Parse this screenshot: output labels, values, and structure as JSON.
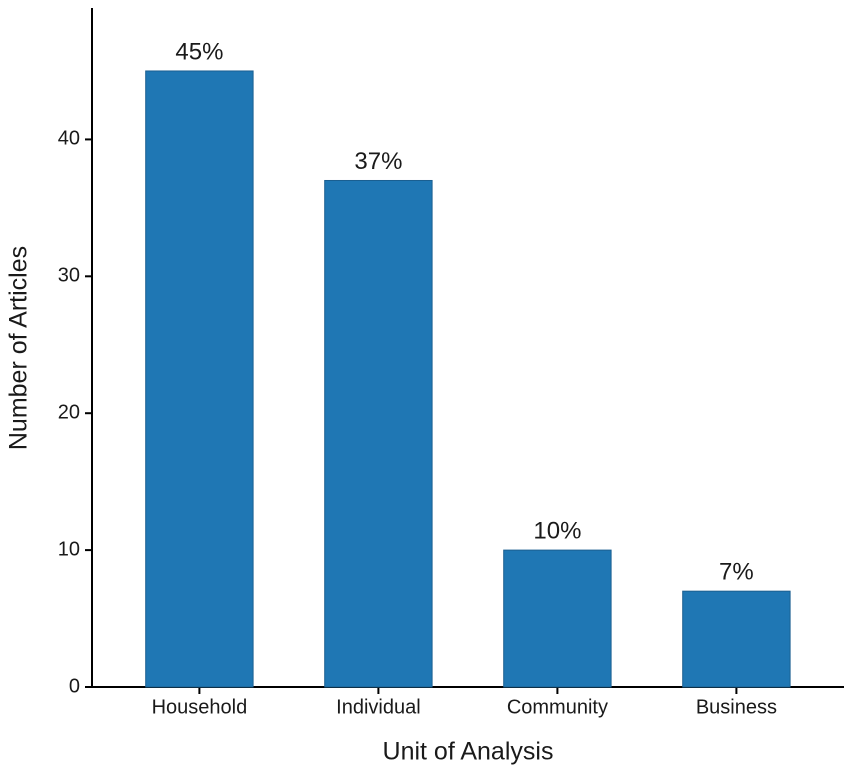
{
  "chart_data": {
    "type": "bar",
    "categories": [
      "Household",
      "Individual",
      "Community",
      "Business"
    ],
    "values": [
      45,
      37,
      10,
      7
    ],
    "value_labels": [
      "45%",
      "37%",
      "10%",
      "7%"
    ],
    "color": "#1f77b4",
    "x_label": "Unit of Analysis",
    "y_label": "Number of Articles",
    "ylim": [
      0,
      49.6
    ],
    "yticks": [
      0,
      10,
      20,
      30,
      40
    ],
    "grid": false
  }
}
